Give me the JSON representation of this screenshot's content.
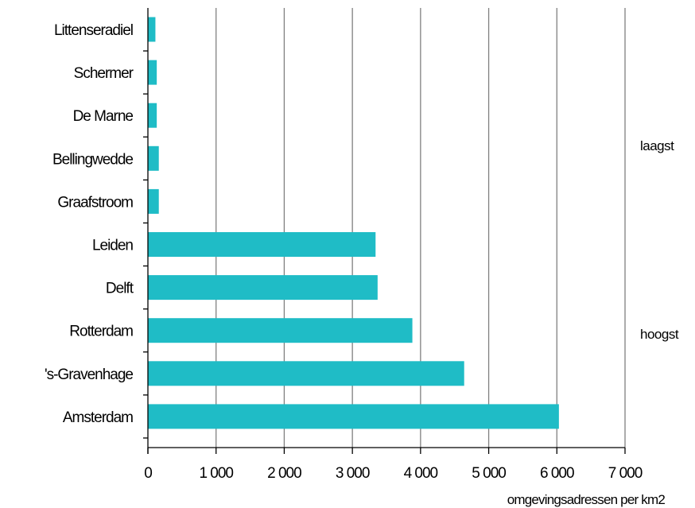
{
  "chart_data": {
    "type": "bar",
    "orientation": "horizontal",
    "categories": [
      "Littenseradiel",
      "Schermer",
      "De Marne",
      "Bellingwedde",
      "Graafstroom",
      "Leiden",
      "Delft",
      "Rotterdam",
      "'s-Gravenhage",
      "Amsterdam"
    ],
    "values": [
      110,
      130,
      130,
      160,
      160,
      3340,
      3370,
      3880,
      4640,
      6030
    ],
    "tick_labels": [
      "0",
      "1 000",
      "2 000",
      "3 000",
      "4 000",
      "5 000",
      "6 000",
      "7 000"
    ],
    "xlim": [
      0,
      7000
    ],
    "xlabel": "omgevingsadressen per km2",
    "group_labels": [
      "laagst",
      "hoogst"
    ],
    "grid": true,
    "bar_color": "#1FBCC6"
  }
}
